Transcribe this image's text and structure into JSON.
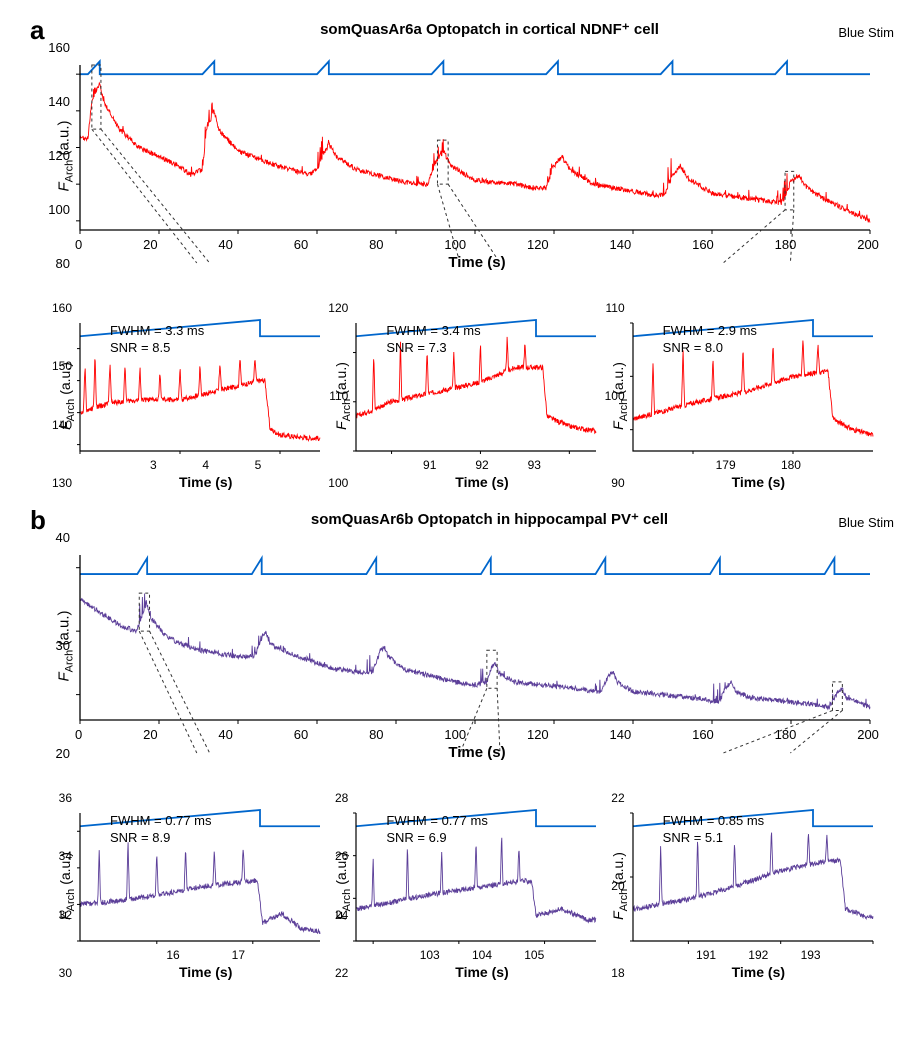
{
  "colors": {
    "red": "#ff0000",
    "blue": "#0066cc",
    "purple": "#5c3f99",
    "black": "#000000",
    "dash": "#333333"
  },
  "panelA": {
    "label": "a",
    "title": "somQuasAr6a Optopatch in cortical NDNF⁺ cell",
    "stim_label": "Blue Stim",
    "ylabel_html": "<span style=\"font-style:italic\">F</span><span class=\"sub\">Arch</span> (a.u.)",
    "xlabel": "Time (s)",
    "main": {
      "xlim": [
        0,
        200
      ],
      "ylim": [
        75,
        165
      ],
      "yticks": [
        80,
        100,
        120,
        140,
        160
      ],
      "xticks": [
        0,
        20,
        40,
        60,
        80,
        100,
        120,
        140,
        160,
        180,
        200
      ],
      "stim_y": 160,
      "stim_peak": 167,
      "stim_period": 29,
      "stim_ramp_start": 2,
      "stim_ramp_end": 5,
      "trace_color": "#ff0000",
      "baseline": [
        [
          0,
          125
        ],
        [
          2,
          125
        ],
        [
          3,
          145
        ],
        [
          5,
          155
        ],
        [
          6,
          145
        ],
        [
          10,
          130
        ],
        [
          15,
          120
        ],
        [
          20,
          115
        ],
        [
          25,
          110
        ],
        [
          28,
          105
        ],
        [
          31,
          108
        ],
        [
          32,
          130
        ],
        [
          34,
          140
        ],
        [
          35,
          130
        ],
        [
          40,
          118
        ],
        [
          50,
          110
        ],
        [
          55,
          107
        ],
        [
          58,
          105
        ],
        [
          60,
          108
        ],
        [
          62,
          118
        ],
        [
          63,
          122
        ],
        [
          65,
          115
        ],
        [
          70,
          108
        ],
        [
          80,
          102
        ],
        [
          85,
          100
        ],
        [
          88,
          100
        ],
        [
          90,
          112
        ],
        [
          92,
          118
        ],
        [
          94,
          110
        ],
        [
          100,
          102
        ],
        [
          110,
          100
        ],
        [
          115,
          98
        ],
        [
          118,
          98
        ],
        [
          120,
          110
        ],
        [
          122,
          115
        ],
        [
          124,
          108
        ],
        [
          130,
          100
        ],
        [
          140,
          96
        ],
        [
          145,
          94
        ],
        [
          148,
          94
        ],
        [
          150,
          105
        ],
        [
          152,
          110
        ],
        [
          154,
          103
        ],
        [
          160,
          95
        ],
        [
          170,
          92
        ],
        [
          176,
          90
        ],
        [
          178,
          90
        ],
        [
          180,
          102
        ],
        [
          182,
          105
        ],
        [
          184,
          98
        ],
        [
          190,
          90
        ],
        [
          195,
          85
        ],
        [
          200,
          80
        ]
      ],
      "zoom_boxes": [
        [
          3,
          5.3,
          130,
          165
        ],
        [
          90.5,
          93.2,
          100,
          124
        ],
        [
          178.5,
          180.7,
          86,
          107
        ]
      ]
    },
    "subs": [
      {
        "FWHM": "3.3 ms",
        "SNR": "8.5",
        "xlim": [
          3,
          5.4
        ],
        "ylim": [
          128,
          168
        ],
        "yticks": [
          130,
          140,
          150,
          160
        ],
        "xticks": [
          3,
          4,
          5
        ],
        "baseline": [
          [
            3,
            140
          ],
          [
            3.3,
            143
          ],
          [
            3.6,
            144
          ],
          [
            4,
            144
          ],
          [
            4.4,
            147
          ],
          [
            4.8,
            150
          ],
          [
            4.85,
            150
          ],
          [
            4.9,
            135
          ],
          [
            5.0,
            133
          ],
          [
            5.3,
            132
          ]
        ],
        "spikes": [
          [
            3.05,
            155
          ],
          [
            3.15,
            158
          ],
          [
            3.3,
            156
          ],
          [
            3.45,
            155
          ],
          [
            3.6,
            154
          ],
          [
            3.8,
            153
          ],
          [
            4.0,
            154
          ],
          [
            4.2,
            155
          ],
          [
            4.4,
            156
          ],
          [
            4.6,
            158
          ],
          [
            4.75,
            157
          ]
        ]
      },
      {
        "FWHM": "3.4 ms",
        "SNR": "7.3",
        "xlim": [
          90.6,
          93.3
        ],
        "ylim": [
          100,
          126
        ],
        "yticks": [
          100,
          110,
          120
        ],
        "xticks": [
          91,
          92,
          93
        ],
        "baseline": [
          [
            90.6,
            107
          ],
          [
            91,
            110
          ],
          [
            91.5,
            112
          ],
          [
            92,
            114
          ],
          [
            92.4,
            117
          ],
          [
            92.7,
            117
          ],
          [
            92.75,
            107
          ],
          [
            93,
            105
          ],
          [
            93.3,
            104
          ]
        ],
        "spikes": [
          [
            90.8,
            120
          ],
          [
            91.1,
            122
          ],
          [
            91.4,
            121
          ],
          [
            91.7,
            120
          ],
          [
            92,
            122
          ],
          [
            92.3,
            123
          ],
          [
            92.5,
            122
          ]
        ]
      },
      {
        "FWHM": "2.9 ms",
        "SNR": "8.0",
        "xlim": [
          178.4,
          180.8
        ],
        "ylim": [
          86,
          110
        ],
        "yticks": [
          90,
          100,
          110
        ],
        "xticks": [
          179,
          180
        ],
        "baseline": [
          [
            178.4,
            92
          ],
          [
            179,
            95
          ],
          [
            179.5,
            97
          ],
          [
            180,
            100
          ],
          [
            180.35,
            101
          ],
          [
            180.4,
            92
          ],
          [
            180.6,
            90
          ],
          [
            180.8,
            89
          ]
        ],
        "spikes": [
          [
            178.6,
            103
          ],
          [
            178.9,
            105
          ],
          [
            179.2,
            104
          ],
          [
            179.5,
            105
          ],
          [
            179.8,
            106
          ],
          [
            180.1,
            107
          ],
          [
            180.25,
            106
          ]
        ]
      }
    ]
  },
  "panelB": {
    "label": "b",
    "title": "somQuasAr6b Optopatch in hippocampal PV⁺ cell",
    "stim_label": "Blue Stim",
    "ylabel_html": "<span style=\"font-style:italic\">F</span><span class=\"sub\">Arch</span> (a.u.)",
    "xlabel": "Time (s)",
    "main": {
      "xlim": [
        0,
        200
      ],
      "ylim": [
        16,
        42
      ],
      "yticks": [
        20,
        30,
        40
      ],
      "xticks": [
        0,
        20,
        40,
        60,
        80,
        100,
        120,
        140,
        160,
        180,
        200
      ],
      "stim_y": 39,
      "stim_peak": 41.5,
      "stim_period": 29,
      "stim_ramp_start": 14.5,
      "stim_ramp_end": 17,
      "trace_color": "#5c3f99",
      "baseline": [
        [
          0,
          35
        ],
        [
          5,
          33
        ],
        [
          10,
          31
        ],
        [
          14,
          30
        ],
        [
          15,
          31
        ],
        [
          16,
          33
        ],
        [
          17,
          34
        ],
        [
          18,
          32
        ],
        [
          22,
          29
        ],
        [
          30,
          27
        ],
        [
          40,
          26
        ],
        [
          44,
          26
        ],
        [
          45,
          27
        ],
        [
          46,
          29
        ],
        [
          47,
          30
        ],
        [
          48,
          28
        ],
        [
          55,
          26
        ],
        [
          65,
          24
        ],
        [
          72,
          23.5
        ],
        [
          74,
          23.5
        ],
        [
          75,
          25
        ],
        [
          76,
          27
        ],
        [
          77,
          27.5
        ],
        [
          78,
          26
        ],
        [
          82,
          24
        ],
        [
          95,
          22
        ],
        [
          100,
          21.5
        ],
        [
          103,
          22
        ],
        [
          104,
          24
        ],
        [
          105,
          25
        ],
        [
          106,
          23.5
        ],
        [
          110,
          22
        ],
        [
          125,
          21
        ],
        [
          130,
          20.5
        ],
        [
          132,
          20.5
        ],
        [
          133,
          22
        ],
        [
          134,
          23
        ],
        [
          135,
          23.5
        ],
        [
          136,
          22
        ],
        [
          140,
          20.5
        ],
        [
          155,
          19.5
        ],
        [
          160,
          19
        ],
        [
          162,
          19
        ],
        [
          163,
          20.5
        ],
        [
          164,
          21.5
        ],
        [
          165,
          22
        ],
        [
          166,
          20.5
        ],
        [
          170,
          19.5
        ],
        [
          185,
          18.5
        ],
        [
          189,
          18
        ],
        [
          190,
          18
        ],
        [
          191,
          19.5
        ],
        [
          192,
          20.5
        ],
        [
          193,
          21
        ],
        [
          194,
          19.5
        ],
        [
          198,
          18.5
        ],
        [
          200,
          18
        ]
      ],
      "zoom_boxes": [
        [
          15,
          17.6,
          30,
          36
        ],
        [
          103,
          105.6,
          21,
          27
        ],
        [
          190.5,
          193,
          17.5,
          22
        ]
      ]
    },
    "subs": [
      {
        "FWHM": "0.77 ms",
        "SNR": "8.9",
        "xlim": [
          15.2,
          17.7
        ],
        "ylim": [
          30,
          37
        ],
        "yticks": [
          30,
          32,
          34,
          36
        ],
        "xticks": [
          16,
          17
        ],
        "baseline": [
          [
            15.2,
            32
          ],
          [
            15.6,
            32.2
          ],
          [
            16,
            32.5
          ],
          [
            16.5,
            33
          ],
          [
            17,
            33.3
          ],
          [
            17.05,
            33.3
          ],
          [
            17.1,
            31
          ],
          [
            17.3,
            31.5
          ],
          [
            17.5,
            30.7
          ],
          [
            17.7,
            30.5
          ]
        ],
        "spikes": [
          [
            15.4,
            35
          ],
          [
            15.7,
            35.5
          ],
          [
            16,
            34.8
          ],
          [
            16.3,
            35.2
          ],
          [
            16.6,
            35
          ],
          [
            16.9,
            35.3
          ]
        ]
      },
      {
        "FWHM": "0.77 ms",
        "SNR": "6.9",
        "xlim": [
          102.8,
          105.6
        ],
        "ylim": [
          22,
          28
        ],
        "yticks": [
          22,
          24,
          26,
          28
        ],
        "xticks": [
          103,
          104,
          105
        ],
        "baseline": [
          [
            102.8,
            23.5
          ],
          [
            103.2,
            23.8
          ],
          [
            103.7,
            24.2
          ],
          [
            104.2,
            24.5
          ],
          [
            104.7,
            24.8
          ],
          [
            104.85,
            24.8
          ],
          [
            104.9,
            23.2
          ],
          [
            105.2,
            23.5
          ],
          [
            105.5,
            23
          ]
        ],
        "spikes": [
          [
            103,
            26
          ],
          [
            103.4,
            26.5
          ],
          [
            103.8,
            26.3
          ],
          [
            104.2,
            26.8
          ],
          [
            104.5,
            27
          ],
          [
            104.7,
            26.5
          ]
        ]
      },
      {
        "FWHM": "0.85 ms",
        "SNR": "5.1",
        "xlim": [
          190.4,
          193
        ],
        "ylim": [
          18,
          22
        ],
        "yticks": [
          18,
          20,
          22
        ],
        "xticks": [
          191,
          192,
          193
        ],
        "baseline": [
          [
            190.4,
            19
          ],
          [
            191,
            19.3
          ],
          [
            191.5,
            19.7
          ],
          [
            192,
            20.2
          ],
          [
            192.5,
            20.5
          ],
          [
            192.65,
            20.5
          ],
          [
            192.7,
            19
          ],
          [
            192.9,
            18.8
          ],
          [
            193,
            18.7
          ]
        ],
        "spikes": [
          [
            190.7,
            21
          ],
          [
            191.1,
            21.3
          ],
          [
            191.5,
            21.2
          ],
          [
            191.9,
            21.5
          ],
          [
            192.3,
            21.4
          ],
          [
            192.5,
            21.3
          ]
        ]
      }
    ]
  }
}
